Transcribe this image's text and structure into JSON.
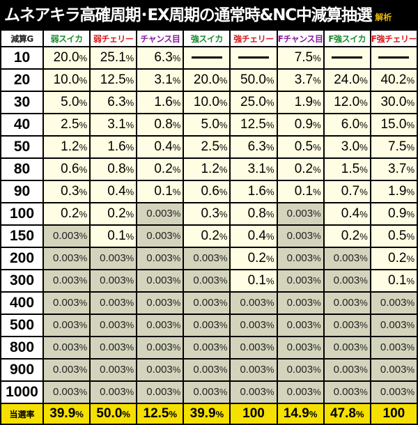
{
  "title": "ムネアキラ高確周期･EX周期の通常時&NC中減算抽選",
  "title_tag": "解析",
  "header": {
    "row_label": "減算G",
    "columns": [
      {
        "label": "弱スイカ",
        "color": "#1a8a2a"
      },
      {
        "label": "弱チェリー",
        "color": "#d81818"
      },
      {
        "label": "チャンス目",
        "color": "#8a1aa0"
      },
      {
        "label": "強スイカ",
        "color": "#1a8a2a"
      },
      {
        "label": "強チェリー",
        "color": "#d81818"
      },
      {
        "label": "Fチャンス目",
        "color": "#8a1aa0"
      },
      {
        "label": "F強スイカ",
        "color": "#1a8a2a"
      },
      {
        "label": "F強チェリー",
        "color": "#d81818"
      }
    ]
  },
  "rows": [
    {
      "label": "10",
      "cells": [
        {
          "v": "20.0",
          "s": "b"
        },
        {
          "v": "25.1",
          "s": "b"
        },
        {
          "v": "6.3",
          "s": "b"
        },
        {
          "v": "",
          "s": "d"
        },
        {
          "v": "",
          "s": "d"
        },
        {
          "v": "7.5",
          "s": "b"
        },
        {
          "v": "",
          "s": "d"
        },
        {
          "v": "",
          "s": "d"
        }
      ]
    },
    {
      "label": "20",
      "cells": [
        {
          "v": "10.0",
          "s": "b"
        },
        {
          "v": "12.5",
          "s": "b"
        },
        {
          "v": "3.1",
          "s": "b"
        },
        {
          "v": "20.0",
          "s": "b"
        },
        {
          "v": "50.0",
          "s": "b"
        },
        {
          "v": "3.7",
          "s": "b"
        },
        {
          "v": "24.0",
          "s": "b"
        },
        {
          "v": "40.2",
          "s": "b"
        }
      ]
    },
    {
      "label": "30",
      "cells": [
        {
          "v": "5.0",
          "s": "b"
        },
        {
          "v": "6.3",
          "s": "b"
        },
        {
          "v": "1.6",
          "s": "b"
        },
        {
          "v": "10.0",
          "s": "b"
        },
        {
          "v": "25.0",
          "s": "b"
        },
        {
          "v": "1.9",
          "s": "b"
        },
        {
          "v": "12.0",
          "s": "b"
        },
        {
          "v": "30.0",
          "s": "b"
        }
      ]
    },
    {
      "label": "40",
      "cells": [
        {
          "v": "2.5",
          "s": "b"
        },
        {
          "v": "3.1",
          "s": "b"
        },
        {
          "v": "0.8",
          "s": "b"
        },
        {
          "v": "5.0",
          "s": "b"
        },
        {
          "v": "12.5",
          "s": "b"
        },
        {
          "v": "0.9",
          "s": "b"
        },
        {
          "v": "6.0",
          "s": "b"
        },
        {
          "v": "15.0",
          "s": "b"
        }
      ]
    },
    {
      "label": "50",
      "cells": [
        {
          "v": "1.2",
          "s": "b"
        },
        {
          "v": "1.6",
          "s": "b"
        },
        {
          "v": "0.4",
          "s": "b"
        },
        {
          "v": "2.5",
          "s": "b"
        },
        {
          "v": "6.3",
          "s": "b"
        },
        {
          "v": "0.5",
          "s": "b"
        },
        {
          "v": "3.0",
          "s": "b"
        },
        {
          "v": "7.5",
          "s": "b"
        }
      ]
    },
    {
      "label": "80",
      "cells": [
        {
          "v": "0.6",
          "s": "b"
        },
        {
          "v": "0.8",
          "s": "b"
        },
        {
          "v": "0.2",
          "s": "b"
        },
        {
          "v": "1.2",
          "s": "b"
        },
        {
          "v": "3.1",
          "s": "b"
        },
        {
          "v": "0.2",
          "s": "b"
        },
        {
          "v": "1.5",
          "s": "b"
        },
        {
          "v": "3.7",
          "s": "b"
        }
      ]
    },
    {
      "label": "90",
      "cells": [
        {
          "v": "0.3",
          "s": "b"
        },
        {
          "v": "0.4",
          "s": "b"
        },
        {
          "v": "0.1",
          "s": "b"
        },
        {
          "v": "0.6",
          "s": "b"
        },
        {
          "v": "1.6",
          "s": "b"
        },
        {
          "v": "0.1",
          "s": "b"
        },
        {
          "v": "0.7",
          "s": "b"
        },
        {
          "v": "1.9",
          "s": "b"
        }
      ]
    },
    {
      "label": "100",
      "cells": [
        {
          "v": "0.2",
          "s": "b"
        },
        {
          "v": "0.2",
          "s": "b"
        },
        {
          "v": "0.003",
          "s": "p"
        },
        {
          "v": "0.3",
          "s": "b"
        },
        {
          "v": "0.8",
          "s": "b"
        },
        {
          "v": "0.003",
          "s": "p"
        },
        {
          "v": "0.4",
          "s": "b"
        },
        {
          "v": "0.9",
          "s": "b"
        }
      ]
    },
    {
      "label": "150",
      "cells": [
        {
          "v": "0.003",
          "s": "p"
        },
        {
          "v": "0.1",
          "s": "b"
        },
        {
          "v": "0.003",
          "s": "p"
        },
        {
          "v": "0.2",
          "s": "b"
        },
        {
          "v": "0.4",
          "s": "b"
        },
        {
          "v": "0.003",
          "s": "p"
        },
        {
          "v": "0.2",
          "s": "b"
        },
        {
          "v": "0.5",
          "s": "b"
        }
      ]
    },
    {
      "label": "200",
      "cells": [
        {
          "v": "0.003",
          "s": "p"
        },
        {
          "v": "0.003",
          "s": "p"
        },
        {
          "v": "0.003",
          "s": "p"
        },
        {
          "v": "0.003",
          "s": "p"
        },
        {
          "v": "0.2",
          "s": "b"
        },
        {
          "v": "0.003",
          "s": "p"
        },
        {
          "v": "0.003",
          "s": "p"
        },
        {
          "v": "0.2",
          "s": "b"
        }
      ]
    },
    {
      "label": "300",
      "cells": [
        {
          "v": "0.003",
          "s": "p"
        },
        {
          "v": "0.003",
          "s": "p"
        },
        {
          "v": "0.003",
          "s": "p"
        },
        {
          "v": "0.003",
          "s": "p"
        },
        {
          "v": "0.1",
          "s": "b"
        },
        {
          "v": "0.003",
          "s": "p"
        },
        {
          "v": "0.003",
          "s": "p"
        },
        {
          "v": "0.1",
          "s": "b"
        }
      ]
    },
    {
      "label": "400",
      "cells": [
        {
          "v": "0.003",
          "s": "p"
        },
        {
          "v": "0.003",
          "s": "p"
        },
        {
          "v": "0.003",
          "s": "p"
        },
        {
          "v": "0.003",
          "s": "p"
        },
        {
          "v": "0.003",
          "s": "p"
        },
        {
          "v": "0.003",
          "s": "p"
        },
        {
          "v": "0.003",
          "s": "p"
        },
        {
          "v": "0.003",
          "s": "p"
        }
      ]
    },
    {
      "label": "500",
      "cells": [
        {
          "v": "0.003",
          "s": "p"
        },
        {
          "v": "0.003",
          "s": "p"
        },
        {
          "v": "0.003",
          "s": "p"
        },
        {
          "v": "0.003",
          "s": "p"
        },
        {
          "v": "0.003",
          "s": "p"
        },
        {
          "v": "0.003",
          "s": "p"
        },
        {
          "v": "0.003",
          "s": "p"
        },
        {
          "v": "0.003",
          "s": "p"
        }
      ]
    },
    {
      "label": "800",
      "cells": [
        {
          "v": "0.003",
          "s": "p"
        },
        {
          "v": "0.003",
          "s": "p"
        },
        {
          "v": "0.003",
          "s": "p"
        },
        {
          "v": "0.003",
          "s": "p"
        },
        {
          "v": "0.003",
          "s": "p"
        },
        {
          "v": "0.003",
          "s": "p"
        },
        {
          "v": "0.003",
          "s": "p"
        },
        {
          "v": "0.003",
          "s": "p"
        }
      ]
    },
    {
      "label": "900",
      "cells": [
        {
          "v": "0.003",
          "s": "p"
        },
        {
          "v": "0.003",
          "s": "p"
        },
        {
          "v": "0.003",
          "s": "p"
        },
        {
          "v": "0.003",
          "s": "p"
        },
        {
          "v": "0.003",
          "s": "p"
        },
        {
          "v": "0.003",
          "s": "p"
        },
        {
          "v": "0.003",
          "s": "p"
        },
        {
          "v": "0.003",
          "s": "p"
        }
      ]
    },
    {
      "label": "1000",
      "cells": [
        {
          "v": "0.003",
          "s": "p"
        },
        {
          "v": "0.003",
          "s": "p"
        },
        {
          "v": "0.003",
          "s": "p"
        },
        {
          "v": "0.003",
          "s": "p"
        },
        {
          "v": "0.003",
          "s": "p"
        },
        {
          "v": "0.003",
          "s": "p"
        },
        {
          "v": "0.003",
          "s": "p"
        },
        {
          "v": "0.003",
          "s": "p"
        }
      ]
    }
  ],
  "total": {
    "label": "当選率",
    "values": [
      {
        "v": "39.9",
        "pct": true
      },
      {
        "v": "50.0",
        "pct": true
      },
      {
        "v": "12.5",
        "pct": true
      },
      {
        "v": "39.9",
        "pct": true
      },
      {
        "v": "100",
        "pct": false
      },
      {
        "v": "14.9",
        "pct": true
      },
      {
        "v": "47.8",
        "pct": true
      },
      {
        "v": "100",
        "pct": false
      }
    ]
  },
  "percent_sign": "%",
  "colors": {
    "cell_bright": "#fffde3",
    "cell_pale": "#d4d4bd",
    "total_row": "#f5e000",
    "title_tag": "#e8b800"
  }
}
